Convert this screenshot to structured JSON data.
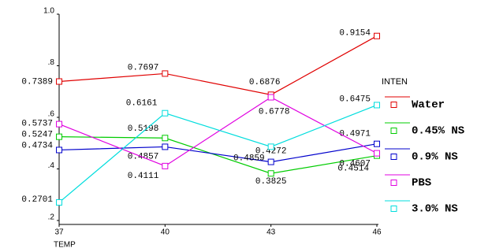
{
  "chart_data": {
    "type": "line",
    "x_label": "TEMP",
    "legend_title": "INTEN",
    "categories": [
      "37",
      "40",
      "43",
      "46"
    ],
    "ylim": [
      0.2,
      1.0
    ],
    "yticks": [
      {
        "value": 0.2,
        "label": ".2"
      },
      {
        "value": 0.4,
        "label": ".4"
      },
      {
        "value": 0.6,
        "label": ".6"
      },
      {
        "value": 0.8,
        "label": ".8"
      },
      {
        "value": 1.0,
        "label": "1.0"
      }
    ],
    "legend_position": "right",
    "series": [
      {
        "name": "Water",
        "color": "#e00000",
        "values": [
          0.7389,
          0.7697,
          0.6876,
          0.9154
        ]
      },
      {
        "name": "0.45% NS",
        "color": "#00cc00",
        "values": [
          0.5247,
          0.5198,
          0.3825,
          0.4514
        ]
      },
      {
        "name": "0.9% NS",
        "color": "#0000cc",
        "values": [
          0.4734,
          0.4857,
          0.4272,
          0.4971
        ]
      },
      {
        "name": "PBS",
        "color": "#e000e0",
        "values": [
          0.5737,
          0.4111,
          0.6778,
          0.4607
        ]
      },
      {
        "name": "3.0% NS",
        "color": "#00dddd",
        "values": [
          0.2701,
          0.6161,
          0.4859,
          0.6475
        ]
      }
    ]
  }
}
